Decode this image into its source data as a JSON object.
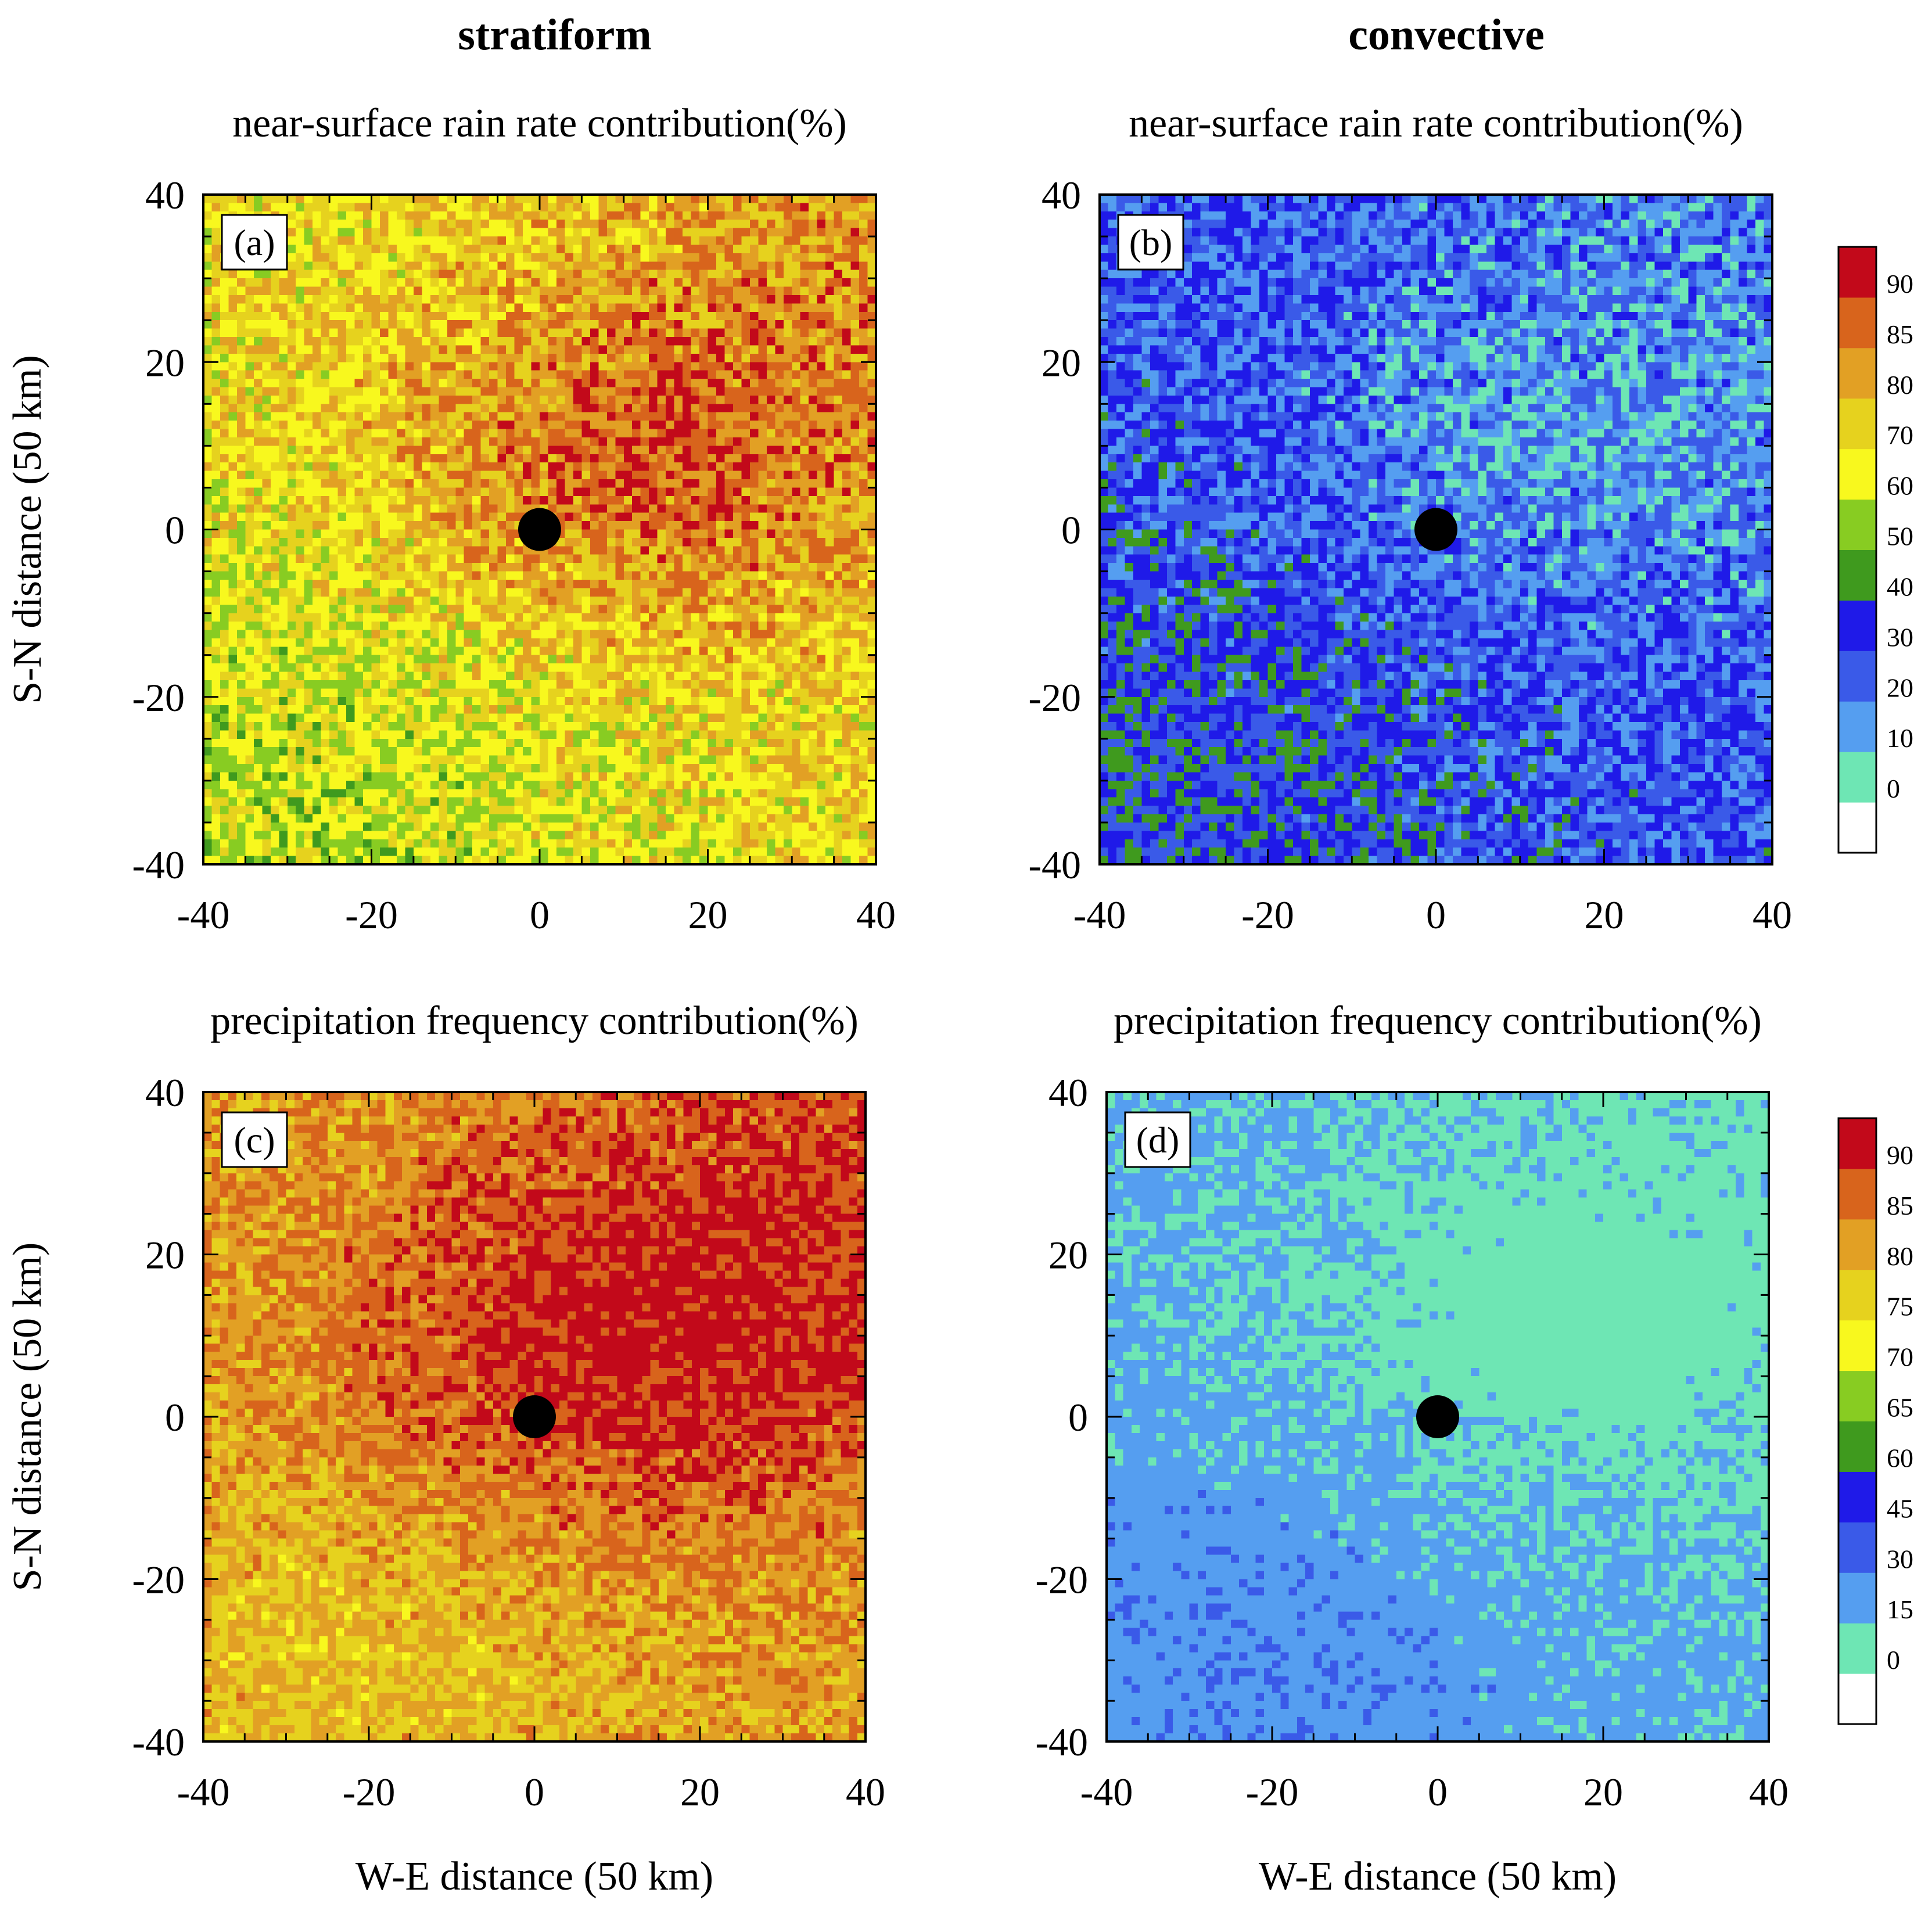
{
  "figure": {
    "column_titles": [
      "stratiform",
      "convective"
    ]
  },
  "colorbars": [
    {
      "labels": [
        "90",
        "85",
        "80",
        "70",
        "60",
        "50",
        "40",
        "30",
        "20",
        "10",
        "0"
      ],
      "colors": [
        "#ffffff",
        "#6ee6b4",
        "#559ef0",
        "#3a5ae8",
        "#1f1ae8",
        "#3f9a1e",
        "#88cc22",
        "#f8f81e",
        "#e6d21e",
        "#e2a024",
        "#d8641c",
        "#c2091a"
      ]
    },
    {
      "labels": [
        "90",
        "85",
        "80",
        "75",
        "70",
        "65",
        "60",
        "45",
        "30",
        "15",
        "0"
      ],
      "colors": [
        "#ffffff",
        "#6ee6b4",
        "#559ef0",
        "#3a5ae8",
        "#1f1ae8",
        "#3f9a1e",
        "#88cc22",
        "#f8f81e",
        "#e6d21e",
        "#e2a024",
        "#d8641c",
        "#c2091a"
      ]
    }
  ],
  "chart_data": [
    {
      "type": "heatmap",
      "panel": "(a)",
      "column": "stratiform",
      "title": "near-surface rain rate contribution(%)",
      "xlabel": "",
      "ylabel": "S-N distance (50 km)",
      "xlim": [
        -40,
        40
      ],
      "ylim": [
        -40,
        40
      ],
      "xticks": [
        "-40",
        "-20",
        "0",
        "20",
        "40"
      ],
      "yticks": [
        "40",
        "20",
        "0",
        "-20",
        "-40"
      ],
      "grid_cells": 80,
      "colorbar": 0,
      "center_marker": [
        0,
        0
      ],
      "field": {
        "center": [
          12,
          8
        ],
        "c_amp": 2.1,
        "c_sx": 22,
        "c_sy": 14,
        "sw_amp": -1.0,
        "sw_x": -30,
        "sw_y": -30,
        "sw_s": 25,
        "ne_amp": 1.4,
        "ne_x": 40,
        "ne_y": 40,
        "ne_s": 28,
        "base": 7.6,
        "noise": 1.5,
        "seed": 11
      }
    },
    {
      "type": "heatmap",
      "panel": "(b)",
      "column": "convective",
      "title": "near-surface rain rate contribution(%)",
      "xlabel": "",
      "ylabel": "",
      "xlim": [
        -40,
        40
      ],
      "ylim": [
        -40,
        40
      ],
      "xticks": [
        "-40",
        "-20",
        "0",
        "20",
        "40"
      ],
      "yticks": [
        "40",
        "20",
        "0",
        "-20",
        "-40"
      ],
      "grid_cells": 80,
      "colorbar": 0,
      "center_marker": [
        0,
        0
      ],
      "field": {
        "center": [
          12,
          8
        ],
        "c_amp": -0.9,
        "c_sx": 22,
        "c_sy": 14,
        "sw_amp": 0.9,
        "sw_x": -30,
        "sw_y": -30,
        "sw_s": 25,
        "ne_amp": -0.6,
        "ne_x": 40,
        "ne_y": 40,
        "ne_s": 28,
        "base": 3.1,
        "noise": 1.4,
        "seed": 23
      }
    },
    {
      "type": "heatmap",
      "panel": "(c)",
      "column": "stratiform",
      "title": "precipitation frequency contribution(%)",
      "xlabel": "W-E distance (50 km)",
      "ylabel": "S-N distance (50 km)",
      "xlim": [
        -40,
        40
      ],
      "ylim": [
        -40,
        40
      ],
      "xticks": [
        "-40",
        "-20",
        "0",
        "20",
        "40"
      ],
      "yticks": [
        "40",
        "20",
        "0",
        "-20",
        "-40"
      ],
      "grid_cells": 80,
      "colorbar": 1,
      "center_marker": [
        0,
        0
      ],
      "field": {
        "center": [
          10,
          8
        ],
        "c_amp": 2.0,
        "c_sx": 25,
        "c_sy": 16,
        "sw_amp": -0.6,
        "sw_x": -20,
        "sw_y": -25,
        "sw_s": 25,
        "ne_amp": 1.2,
        "ne_x": 40,
        "ne_y": 40,
        "ne_s": 30,
        "base": 8.9,
        "noise": 1.1,
        "seed": 37
      }
    },
    {
      "type": "heatmap",
      "panel": "(d)",
      "column": "convective",
      "title": "precipitation frequency contribution(%)",
      "xlabel": "W-E distance (50 km)",
      "ylabel": "",
      "xlim": [
        -40,
        40
      ],
      "ylim": [
        -40,
        40
      ],
      "xticks": [
        "-40",
        "-20",
        "0",
        "20",
        "40"
      ],
      "yticks": [
        "40",
        "20",
        "0",
        "-20",
        "-40"
      ],
      "grid_cells": 80,
      "colorbar": 1,
      "center_marker": [
        0,
        0
      ],
      "field": {
        "center": [
          10,
          8
        ],
        "c_amp": -0.8,
        "c_sx": 25,
        "c_sy": 16,
        "sw_amp": 0.5,
        "sw_x": -20,
        "sw_y": -25,
        "sw_s": 25,
        "ne_amp": -0.5,
        "ne_x": 40,
        "ne_y": 40,
        "ne_s": 30,
        "base": 1.75,
        "noise": 0.55,
        "seed": 53
      }
    }
  ]
}
